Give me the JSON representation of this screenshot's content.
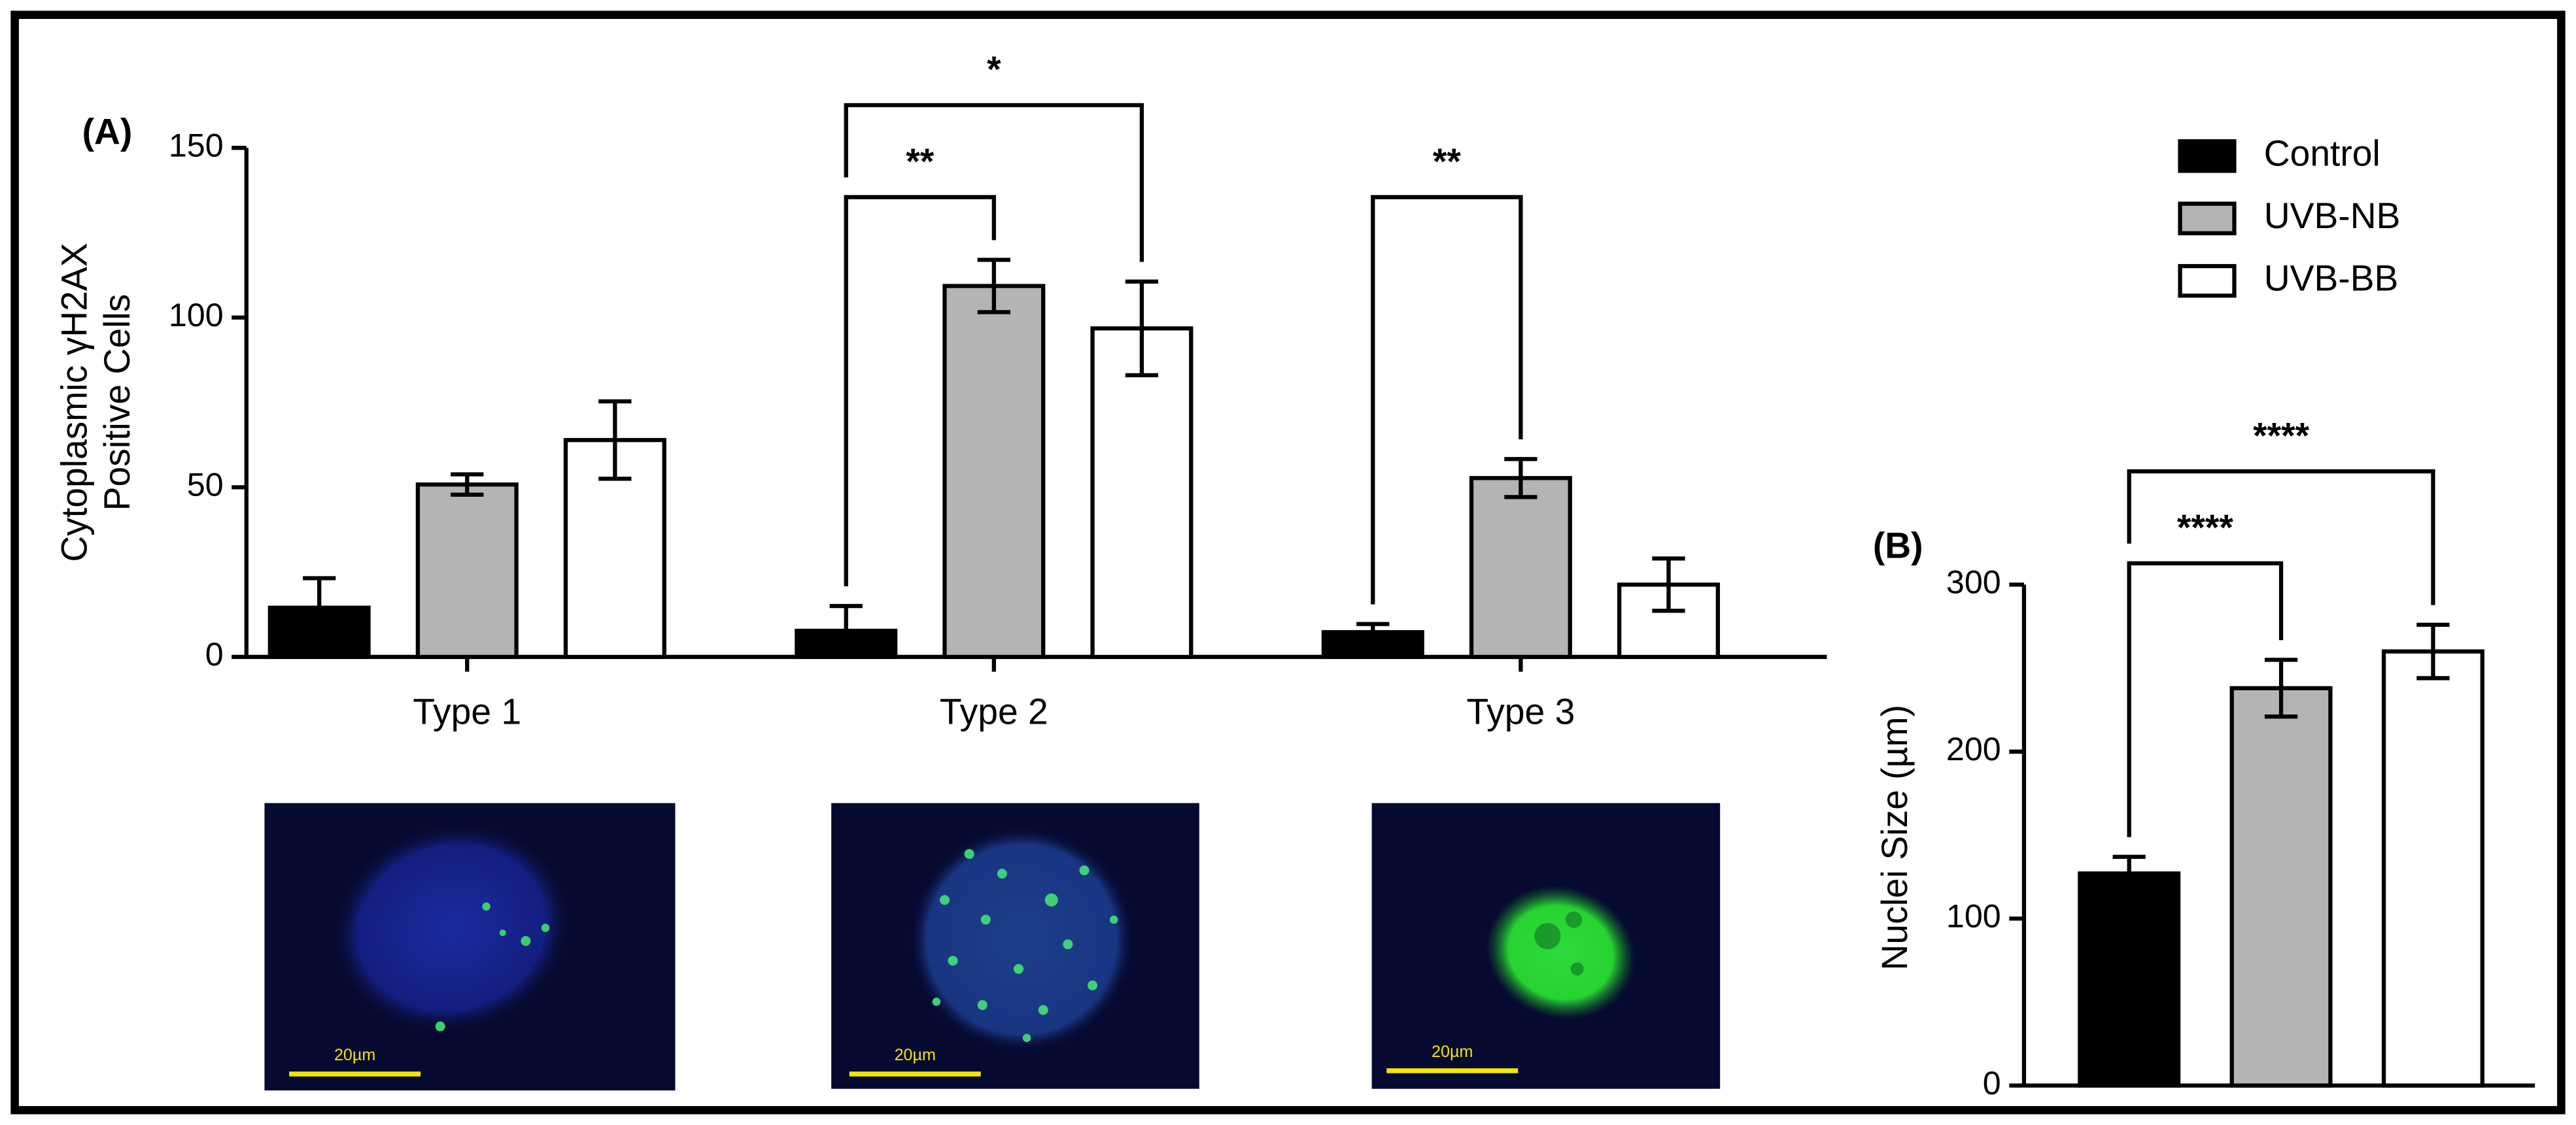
{
  "chart_data": [
    {
      "type": "bar",
      "panel_label": "(A)",
      "y_label": [
        "Cytoplasmic γH2AX",
        "Positive Cells"
      ],
      "categories": [
        "Type 1",
        "Type 2",
        "Type 3"
      ],
      "series": [
        {
          "name": "Control",
          "color": "#000000",
          "values": [
            14.5,
            7.7,
            7.3
          ],
          "errors": [
            8.7,
            7.3,
            2.4
          ]
        },
        {
          "name": "UVB-NB",
          "color": "#b4b4b4",
          "values": [
            50.8,
            109.3,
            52.7
          ],
          "errors": [
            3,
            7.7,
            5.6
          ]
        },
        {
          "name": "UVB-BB",
          "color": "#ffffff",
          "values": [
            63.9,
            96.8,
            21.3
          ],
          "errors": [
            11.4,
            13.8,
            7.7
          ]
        }
      ],
      "ylim": [
        0,
        150
      ],
      "yticks": [
        0,
        50,
        100,
        150
      ],
      "comparisons": [
        {
          "label": "**",
          "category": "Type 2",
          "between": [
            "Control",
            "UVB-NB"
          ]
        },
        {
          "label": "*",
          "category": "Type 2",
          "between": [
            "Control",
            "UVB-BB"
          ]
        },
        {
          "label": "**",
          "category": "Type 3",
          "between": [
            "Control",
            "UVB-NB"
          ]
        }
      ],
      "legend": "top-right"
    },
    {
      "type": "bar",
      "panel_label": "(B)",
      "y_label": [
        "Nuclei Size (µm)"
      ],
      "values": [
        127,
        238,
        260
      ],
      "errors": [
        10,
        17,
        16
      ],
      "colors": [
        "#000000",
        "#b4b4b4",
        "#ffffff"
      ],
      "ylim": [
        0,
        300
      ],
      "yticks": [
        0,
        100,
        200,
        300
      ],
      "comparisons": [
        {
          "label": "****",
          "bars": [
            0,
            1
          ]
        },
        {
          "label": "****",
          "bars": [
            0,
            2
          ]
        }
      ]
    }
  ],
  "images": [
    {
      "scale_bar": "20µm"
    },
    {
      "scale_bar": "20µm"
    },
    {
      "scale_bar": "20µm"
    }
  ]
}
